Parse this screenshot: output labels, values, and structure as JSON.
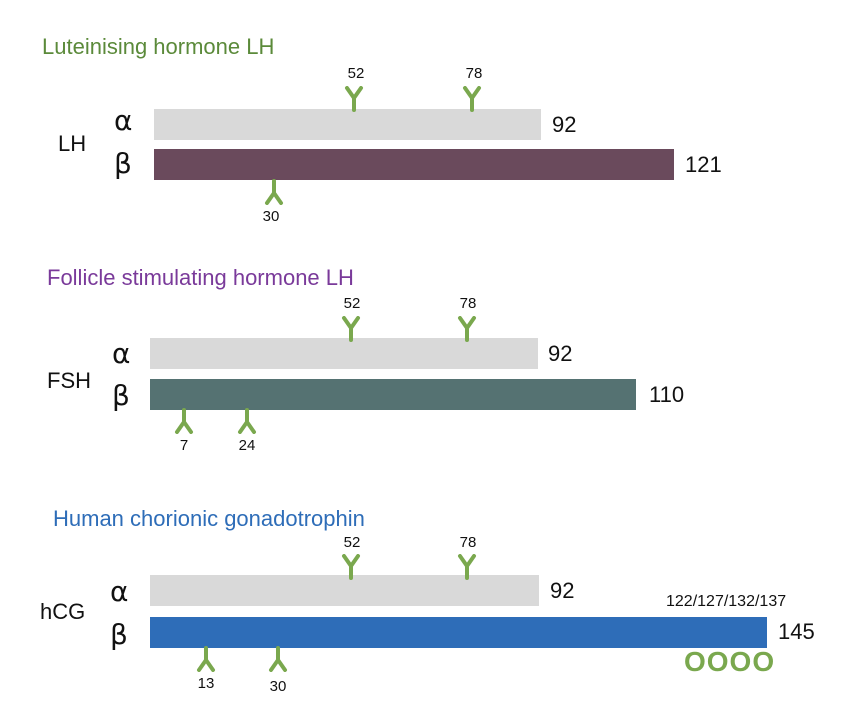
{
  "colors": {
    "lh_title": "#5b8a3a",
    "fsh_title": "#7a3a9a",
    "hcg_title": "#2e6db8",
    "alpha_bar": "#d9d9d9",
    "lh_beta": "#6a4a5c",
    "fsh_beta": "#557272",
    "hcg_beta": "#2e6db8",
    "glycan": "#7aa84e"
  },
  "lh": {
    "title": "Luteinising hormone LH",
    "name": "LH",
    "alpha": "α",
    "beta": "β",
    "alpha_len": "92",
    "beta_len": "121",
    "alpha_sites": [
      "52",
      "78"
    ],
    "beta_sites": [
      "30"
    ]
  },
  "fsh": {
    "title": "Follicle stimulating hormone LH",
    "name": "FSH",
    "alpha": "α",
    "beta": "β",
    "alpha_len": "92",
    "beta_len": "110",
    "alpha_sites": [
      "52",
      "78"
    ],
    "beta_sites": [
      "7",
      "24"
    ]
  },
  "hcg": {
    "title": "Human chorionic gonadotrophin",
    "name": "hCG",
    "alpha": "α",
    "beta": "β",
    "alpha_len": "92",
    "beta_len": "145",
    "alpha_sites": [
      "52",
      "78"
    ],
    "beta_sites": [
      "13",
      "30"
    ],
    "o_sites": "122/127/132/137",
    "o_glycans": "OOOO"
  }
}
